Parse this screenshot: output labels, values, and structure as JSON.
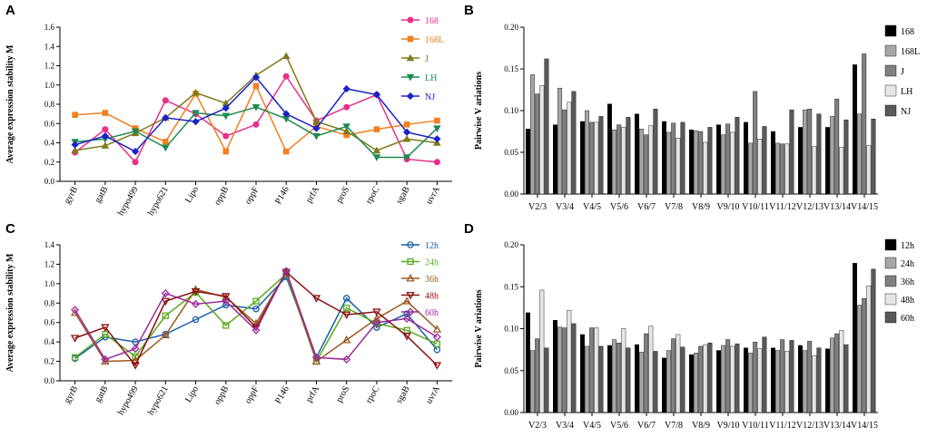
{
  "chart_data": [
    {
      "panel": "A",
      "type": "line",
      "ylabel": "Average expression stability M",
      "ylim": [
        0,
        1.6
      ],
      "yticks": [
        "0.0",
        "0.2",
        "0.4",
        "0.6",
        "0.8",
        "1.0",
        "1.2",
        "1.4",
        "1.6"
      ],
      "categories": [
        "gyrB",
        "gatB",
        "hypo499",
        "hypo621",
        "Lipo",
        "oppB",
        "oppF",
        "P146",
        "prfA",
        "proS",
        "rpoC",
        "sgaB",
        "uvrA"
      ],
      "legend_position": "top-right",
      "series": [
        {
          "name": "168",
          "color": "#e8308a",
          "marker": "circle",
          "values": [
            0.3,
            0.54,
            0.2,
            0.84,
            0.7,
            0.47,
            0.59,
            1.09,
            0.63,
            0.77,
            0.9,
            0.23,
            0.2
          ]
        },
        {
          "name": "168L",
          "color": "#f08020",
          "marker": "square",
          "values": [
            0.69,
            0.71,
            0.55,
            0.41,
            0.91,
            0.31,
            0.99,
            0.31,
            0.57,
            0.48,
            0.54,
            0.59,
            0.63
          ]
        },
        {
          "name": "J",
          "color": "#7f7a1a",
          "marker": "triangle-up",
          "values": [
            0.32,
            0.37,
            0.5,
            0.66,
            0.92,
            0.81,
            1.1,
            1.3,
            0.62,
            0.52,
            0.32,
            0.44,
            0.4
          ]
        },
        {
          "name": "LH",
          "color": "#1e8a50",
          "marker": "triangle-down",
          "values": [
            0.41,
            0.44,
            0.52,
            0.35,
            0.71,
            0.68,
            0.77,
            0.65,
            0.47,
            0.57,
            0.25,
            0.25,
            0.55
          ]
        },
        {
          "name": "NJ",
          "color": "#1a22c8",
          "marker": "diamond",
          "values": [
            0.38,
            0.47,
            0.31,
            0.66,
            0.62,
            0.76,
            1.08,
            0.7,
            0.55,
            0.96,
            0.9,
            0.51,
            0.44
          ]
        }
      ]
    },
    {
      "panel": "B",
      "type": "bar",
      "ylabel": "Pairwise V ariations",
      "ylim": [
        0,
        0.2
      ],
      "yticks": [
        "0.00",
        "0.05",
        "0.10",
        "0.15",
        "0.20"
      ],
      "categories": [
        "V2/3",
        "V3/4",
        "V4/5",
        "V5/6",
        "V6/7",
        "V7/8",
        "V8/9",
        "V9/10",
        "V10/11",
        "V11/12",
        "V12/13",
        "V13/14",
        "V14/15"
      ],
      "legend_position": "top-right",
      "series": [
        {
          "name": "168",
          "color": "#000000",
          "values": [
            0.078,
            0.083,
            0.087,
            0.108,
            0.096,
            0.087,
            0.077,
            0.083,
            0.086,
            0.075,
            0.08,
            0.08,
            0.155
          ]
        },
        {
          "name": "168L",
          "color": "#a6a6a6",
          "values": [
            0.143,
            0.127,
            0.1,
            0.077,
            0.078,
            0.074,
            0.076,
            0.071,
            0.061,
            0.061,
            0.101,
            0.093,
            0.096
          ]
        },
        {
          "name": "J",
          "color": "#808080",
          "values": [
            0.12,
            0.101,
            0.086,
            0.083,
            0.071,
            0.085,
            0.075,
            0.084,
            0.123,
            0.06,
            0.102,
            0.114,
            0.168
          ]
        },
        {
          "name": "LH",
          "color": "#e6e6e6",
          "values": [
            0.13,
            0.11,
            0.086,
            0.08,
            0.082,
            0.067,
            0.062,
            0.074,
            0.066,
            0.06,
            0.057,
            0.056,
            0.058
          ]
        },
        {
          "name": "NJ",
          "color": "#595959",
          "values": [
            0.162,
            0.123,
            0.093,
            0.092,
            0.102,
            0.086,
            0.08,
            0.092,
            0.081,
            0.101,
            0.096,
            0.089,
            0.09
          ]
        }
      ]
    },
    {
      "panel": "C",
      "type": "line",
      "ylabel": "Average expression stability M",
      "ylim": [
        0,
        1.4
      ],
      "yticks": [
        "0.0",
        "0.2",
        "0.4",
        "0.6",
        "0.8",
        "1.0",
        "1.2",
        "1.4"
      ],
      "categories": [
        "gyrB",
        "gatB",
        "hypo499",
        "hypo621",
        "Lipo",
        "oppB",
        "oppF",
        "P146",
        "prfA",
        "proS",
        "rpoC",
        "sgaB",
        "uvrA"
      ],
      "legend_position": "top-right",
      "series": [
        {
          "name": "12h",
          "color": "#1a5fa8",
          "marker": "circle",
          "values": [
            0.23,
            0.45,
            0.4,
            0.48,
            0.63,
            0.78,
            0.74,
            1.07,
            0.24,
            0.85,
            0.55,
            0.69,
            0.32
          ]
        },
        {
          "name": "24h",
          "color": "#5aaa1e",
          "marker": "square",
          "values": [
            0.24,
            0.48,
            0.25,
            0.67,
            0.91,
            0.57,
            0.82,
            1.1,
            0.2,
            0.75,
            0.59,
            0.52,
            0.38
          ]
        },
        {
          "name": "36h",
          "color": "#9a5a20",
          "marker": "triangle-up",
          "values": [
            0.7,
            0.2,
            0.21,
            0.47,
            0.94,
            0.86,
            0.59,
            1.12,
            0.2,
            0.42,
            0.64,
            0.82,
            0.53
          ]
        },
        {
          "name": "48h",
          "color": "#8a1010",
          "marker": "triangle-down",
          "values": [
            0.44,
            0.55,
            0.16,
            0.82,
            0.92,
            0.87,
            0.55,
            1.12,
            0.85,
            0.68,
            0.71,
            0.46,
            0.16
          ]
        },
        {
          "name": "60h",
          "color": "#9a2a9a",
          "marker": "diamond",
          "values": [
            0.73,
            0.22,
            0.33,
            0.9,
            0.79,
            0.82,
            0.52,
            1.13,
            0.24,
            0.22,
            0.6,
            0.64,
            0.45
          ]
        }
      ]
    },
    {
      "panel": "D",
      "type": "bar",
      "ylabel": "Pairwise V ariations",
      "ylim": [
        0,
        0.2
      ],
      "yticks": [
        "0.00",
        "0.05",
        "0.10",
        "0.15",
        "0.20"
      ],
      "categories": [
        "V2/3",
        "V3/4",
        "V4/5",
        "V5/6",
        "V6/7",
        "V7/8",
        "V8/9",
        "V9/10",
        "V10/11",
        "V11/12",
        "V12/13",
        "V13/14",
        "V14/15"
      ],
      "legend_position": "top-right",
      "series": [
        {
          "name": "12h",
          "color": "#000000",
          "values": [
            0.119,
            0.11,
            0.093,
            0.08,
            0.081,
            0.065,
            0.069,
            0.074,
            0.077,
            0.077,
            0.08,
            0.076,
            0.178
          ]
        },
        {
          "name": "24h",
          "color": "#a6a6a6",
          "values": [
            0.074,
            0.102,
            0.079,
            0.087,
            0.072,
            0.074,
            0.071,
            0.08,
            0.071,
            0.074,
            0.074,
            0.089,
            0.128
          ]
        },
        {
          "name": "36h",
          "color": "#808080",
          "values": [
            0.088,
            0.101,
            0.101,
            0.083,
            0.094,
            0.088,
            0.079,
            0.087,
            0.084,
            0.087,
            0.085,
            0.094,
            0.136
          ]
        },
        {
          "name": "48h",
          "color": "#e6e6e6",
          "values": [
            0.146,
            0.122,
            0.101,
            0.1,
            0.103,
            0.093,
            0.081,
            0.079,
            0.076,
            0.073,
            0.068,
            0.098,
            0.151
          ]
        },
        {
          "name": "60h",
          "color": "#595959",
          "values": [
            0.077,
            0.106,
            0.079,
            0.077,
            0.073,
            0.078,
            0.083,
            0.082,
            0.09,
            0.086,
            0.077,
            0.081,
            0.171
          ]
        }
      ]
    }
  ]
}
